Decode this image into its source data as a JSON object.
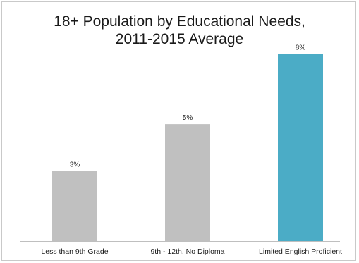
{
  "chart_data": {
    "type": "bar",
    "title_lines": [
      "18+ Population by Educational Needs,",
      "2011-2015 Average"
    ],
    "categories": [
      "Less than 9th Grade",
      "9th - 12th, No Diploma",
      "Limited English Proficient"
    ],
    "values": [
      3,
      5,
      8
    ],
    "value_labels": [
      "3%",
      "5%",
      "8%"
    ],
    "bar_colors": [
      "#c0c0c0",
      "#c0c0c0",
      "#4bacc6"
    ],
    "ylim": [
      0,
      8.5
    ],
    "grid": false,
    "legend": "none"
  }
}
